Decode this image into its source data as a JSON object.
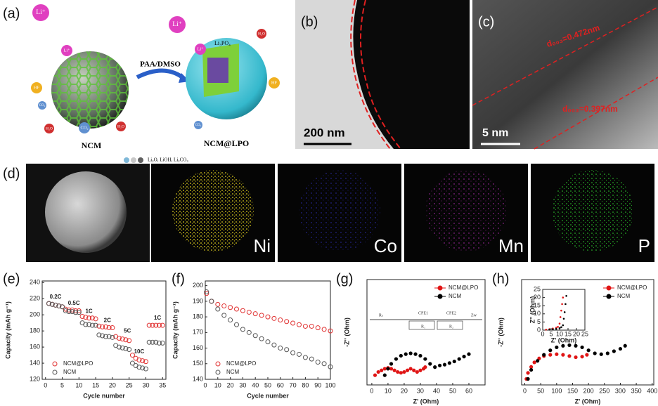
{
  "panels": {
    "a": {
      "label": "(a)",
      "reaction": "PAA/DMSO",
      "left_particle": "NCM",
      "right_particle": "NCM@LPO",
      "coating": "Li₃PO₄",
      "legend": "Li₂O, LiOH, Li₂CO₃",
      "species": [
        "Li⁺",
        "Li⁺",
        "HF",
        "CO₂",
        "H₂O",
        "CO₂",
        "H₂O",
        "Li⁺",
        "Li⁺",
        "H₂O",
        "HF",
        "CO₂"
      ]
    },
    "b": {
      "label": "(b)",
      "scale_bar": "200 nm"
    },
    "c": {
      "label": "(c)",
      "scale_bar": "5 nm",
      "spacing_1": "d₀₀₃=0.472nm",
      "spacing_2": "d₀₀₃=0.397nm"
    },
    "d": {
      "label": "(d)",
      "elements": [
        "Ni",
        "Co",
        "Mn",
        "P"
      ]
    }
  },
  "chart_data": [
    {
      "type": "scatter",
      "panel_label": "(e)",
      "x_label": "Cycle number",
      "y_label": "Capacity (mAh g⁻¹)",
      "marker": "open",
      "legend": "lower left",
      "x": [
        1,
        2,
        3,
        4,
        5,
        6,
        7,
        8,
        9,
        10,
        11,
        12,
        13,
        14,
        15,
        16,
        17,
        18,
        19,
        20,
        21,
        22,
        23,
        24,
        25,
        26,
        27,
        28,
        29,
        30,
        31,
        32,
        33,
        34,
        35
      ],
      "series": [
        {
          "name": "NCM@LPO",
          "color": "#e03030",
          "values": [
            214,
            213,
            212,
            211,
            210,
            207,
            206,
            206,
            205,
            205,
            198,
            197,
            196,
            196,
            195,
            186,
            185,
            185,
            184,
            184,
            173,
            171,
            170,
            169,
            168,
            150,
            146,
            144,
            143,
            142,
            187,
            187,
            187,
            187,
            187
          ]
        },
        {
          "name": "NCM",
          "color": "#555555",
          "values": [
            214,
            213,
            212,
            211,
            210,
            205,
            204,
            204,
            203,
            203,
            190,
            188,
            188,
            187,
            187,
            175,
            174,
            173,
            173,
            172,
            162,
            160,
            159,
            158,
            157,
            140,
            137,
            135,
            134,
            133,
            166,
            166,
            166,
            165,
            165
          ]
        }
      ],
      "annotations": [
        "0.2C",
        "0.5C",
        "1C",
        "2C",
        "5C",
        "10C",
        "1C"
      ],
      "xlim": [
        -1,
        36
      ],
      "xticks": [
        0,
        5,
        10,
        15,
        20,
        25,
        30,
        35
      ],
      "ylim": [
        120,
        242
      ],
      "yticks": [
        120,
        140,
        160,
        180,
        200,
        220,
        240
      ]
    },
    {
      "type": "scatter",
      "panel_label": "(f)",
      "x_label": "Cycle number",
      "y_label": "Capacity (mAh g⁻¹)",
      "marker": "open",
      "legend": "lower left",
      "x": [
        1,
        5,
        10,
        15,
        20,
        25,
        30,
        35,
        40,
        45,
        50,
        55,
        60,
        65,
        70,
        75,
        80,
        85,
        90,
        95,
        100
      ],
      "series": [
        {
          "name": "NCM@LPO",
          "color": "#e03030",
          "values": [
            195,
            190,
            188,
            187,
            186,
            185,
            184,
            183,
            182,
            181,
            180,
            179,
            178,
            177,
            176,
            175,
            174,
            174,
            173,
            172,
            171
          ]
        },
        {
          "name": "NCM",
          "color": "#555555",
          "values": [
            196,
            190,
            185,
            181,
            178,
            175,
            172,
            170,
            168,
            166,
            164,
            162,
            160,
            159,
            157,
            156,
            154,
            153,
            151,
            150,
            148
          ]
        }
      ],
      "xlim": [
        0,
        100
      ],
      "xticks": [
        0,
        10,
        20,
        30,
        40,
        50,
        60,
        70,
        80,
        90,
        100
      ],
      "ylim": [
        140,
        203
      ],
      "yticks": [
        140,
        150,
        160,
        170,
        180,
        190,
        200
      ]
    },
    {
      "type": "line",
      "panel_label": "(g)",
      "x_label": "Z' (Ohm)",
      "y_label": "-Z'' (Ohm)",
      "legend": "upper right",
      "circuit_labels": [
        "Rₛ",
        "CPE1",
        "R₁",
        "CPE2",
        "R₂",
        "Zw"
      ],
      "series": [
        {
          "name": "NCM@LPO",
          "color": "#e01515",
          "x": [
            2,
            4,
            6,
            8,
            10,
            12,
            14,
            16,
            18,
            20,
            22,
            24,
            26,
            28,
            30,
            32,
            33
          ],
          "values": [
            1,
            3,
            4,
            5,
            5.5,
            5,
            4,
            3,
            2.5,
            3,
            4,
            5,
            4,
            3,
            4,
            5,
            6
          ]
        },
        {
          "name": "NCM",
          "color": "#000000",
          "x": [
            8,
            10,
            12,
            15,
            18,
            21,
            24,
            27,
            30,
            33,
            36,
            39,
            42,
            45,
            48,
            51,
            54,
            57,
            60
          ],
          "values": [
            1,
            5,
            8,
            11,
            13,
            14,
            14.5,
            14,
            13,
            11,
            8,
            6,
            7,
            7.5,
            8.5,
            9.5,
            11,
            12.5,
            14
          ]
        }
      ],
      "xlim": [
        -3,
        70
      ],
      "xticks": [
        0,
        10,
        20,
        30,
        40,
        50,
        60
      ],
      "ylim": [
        -5,
        60
      ]
    },
    {
      "type": "line",
      "panel_label": "(h)",
      "x_label": "Z' (Ohm)",
      "y_label": "-Z'' (Ohm)",
      "legend": "upper right",
      "series": [
        {
          "name": "NCM@LPO",
          "color": "#e01515",
          "x": [
            5,
            10,
            20,
            30,
            45,
            60,
            80,
            100,
            120,
            140,
            160,
            180,
            195
          ],
          "values": [
            0,
            20,
            40,
            55,
            68,
            76,
            80,
            82,
            80,
            76,
            72,
            74,
            80
          ]
        },
        {
          "name": "NCM",
          "color": "#000000",
          "x": [
            10,
            20,
            40,
            60,
            80,
            100,
            120,
            140,
            160,
            180,
            200,
            220,
            240,
            260,
            280,
            300,
            315
          ],
          "values": [
            0,
            30,
            60,
            80,
            95,
            105,
            110,
            112,
            110,
            105,
            95,
            85,
            82,
            85,
            92,
            100,
            110
          ]
        }
      ],
      "xlim": [
        -10,
        405
      ],
      "xticks": [
        0,
        50,
        100,
        150,
        200,
        250,
        300,
        350,
        400
      ],
      "ylim": [
        -20,
        330
      ]
    },
    {
      "type": "line",
      "x_label": "Z' (Ohm)",
      "y_label": "Z'' (Ohm)",
      "series": [
        {
          "color": "#e01515",
          "x": [
            2,
            4,
            6,
            8,
            9,
            10,
            10.5,
            11,
            11.5,
            12
          ],
          "values": [
            0.3,
            0.6,
            1,
            1.5,
            2,
            4,
            8,
            12,
            16,
            20
          ]
        },
        {
          "color": "#000000",
          "x": [
            4,
            6,
            8,
            10,
            11,
            12,
            12.5,
            13,
            13.5,
            14
          ],
          "values": [
            0.3,
            0.5,
            0.8,
            1.2,
            1.8,
            3,
            7,
            11,
            16,
            21
          ]
        }
      ],
      "xlim": [
        0,
        25
      ],
      "xticks": [
        0,
        5,
        10,
        15,
        20,
        25
      ],
      "ylim": [
        0,
        25
      ],
      "yticks": [
        0,
        5,
        10,
        15,
        20,
        25
      ]
    }
  ]
}
